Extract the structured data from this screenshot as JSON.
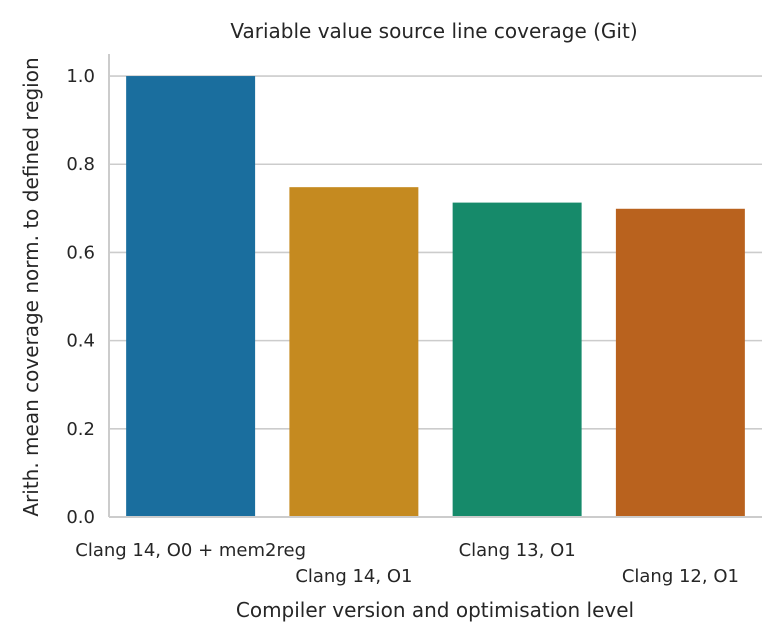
{
  "chart_data": {
    "type": "bar",
    "title": "Variable value source line coverage (Git)",
    "xlabel": "Compiler version and optimisation level",
    "ylabel": "Arith. mean coverage norm. to defined region",
    "categories": [
      "Clang 14, O0 + mem2reg",
      "Clang 14, O1",
      "Clang 13, O1",
      "Clang 12, O1"
    ],
    "values": [
      1.0,
      0.748,
      0.713,
      0.699
    ],
    "colors": [
      "#1a6e9e",
      "#c58a20",
      "#168a6a",
      "#b9621e"
    ],
    "ylim": [
      0,
      1.05
    ],
    "yticks": [
      "0.0",
      "0.2",
      "0.4",
      "0.6",
      "0.8",
      "1.0"
    ],
    "grid": "horizontal",
    "legend": "none"
  }
}
